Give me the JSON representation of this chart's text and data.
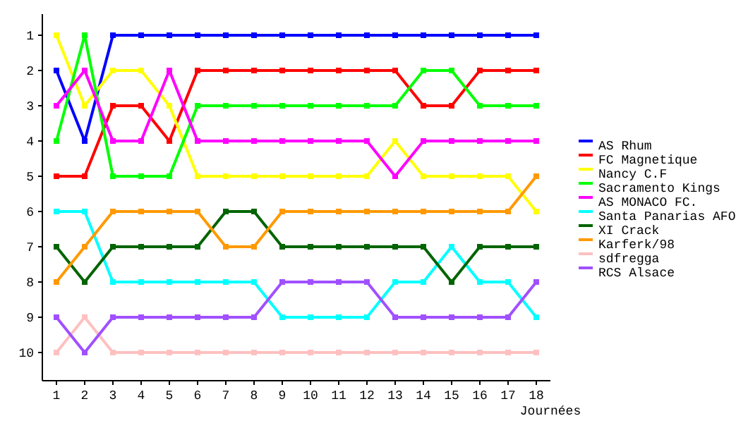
{
  "chart_data": {
    "type": "line",
    "xlabel": "Journées",
    "x": [
      1,
      2,
      3,
      4,
      5,
      6,
      7,
      8,
      9,
      10,
      11,
      12,
      13,
      14,
      15,
      16,
      17,
      18
    ],
    "xlim": [
      0.5,
      18.5
    ],
    "xticks": [
      1,
      2,
      3,
      4,
      5,
      6,
      7,
      8,
      9,
      10,
      11,
      12,
      13,
      14,
      15,
      16,
      17,
      18
    ],
    "ylim": [
      10.8,
      0.4
    ],
    "yticks": [
      1,
      2,
      3,
      4,
      5,
      6,
      7,
      8,
      9,
      10
    ],
    "grid": false,
    "legend": "right",
    "marker": "square",
    "line_style": "solid",
    "series": [
      {
        "name": "AS Rhum",
        "color": "#0000ff",
        "values": [
          2,
          4,
          1,
          1,
          1,
          1,
          1,
          1,
          1,
          1,
          1,
          1,
          1,
          1,
          1,
          1,
          1,
          1
        ]
      },
      {
        "name": "FC Magnetique",
        "color": "#ff0000",
        "values": [
          5,
          5,
          3,
          3,
          4,
          2,
          2,
          2,
          2,
          2,
          2,
          2,
          2,
          3,
          3,
          2,
          2,
          2
        ]
      },
      {
        "name": "Nancy C.F",
        "color": "#ffff00",
        "values": [
          1,
          3,
          2,
          2,
          3,
          5,
          5,
          5,
          5,
          5,
          5,
          5,
          4,
          5,
          5,
          5,
          5,
          6
        ]
      },
      {
        "name": "Sacramento Kings",
        "color": "#00ff00",
        "values": [
          4,
          1,
          5,
          5,
          5,
          3,
          3,
          3,
          3,
          3,
          3,
          3,
          3,
          2,
          2,
          3,
          3,
          3
        ]
      },
      {
        "name": "AS MONACO FC.",
        "color": "#ff00ff",
        "values": [
          3,
          2,
          4,
          4,
          2,
          4,
          4,
          4,
          4,
          4,
          4,
          4,
          5,
          4,
          4,
          4,
          4,
          4
        ]
      },
      {
        "name": "Santa Panarias AFO",
        "color": "#00ffff",
        "values": [
          6,
          6,
          8,
          8,
          8,
          8,
          8,
          8,
          9,
          9,
          9,
          9,
          8,
          8,
          7,
          8,
          8,
          9
        ]
      },
      {
        "name": "XI Crack",
        "color": "#006400",
        "values": [
          7,
          8,
          7,
          7,
          7,
          7,
          6,
          6,
          7,
          7,
          7,
          7,
          7,
          7,
          8,
          7,
          7,
          7
        ]
      },
      {
        "name": "Karferk/98",
        "color": "#ff9900",
        "values": [
          8,
          7,
          6,
          6,
          6,
          6,
          7,
          7,
          6,
          6,
          6,
          6,
          6,
          6,
          6,
          6,
          6,
          5
        ]
      },
      {
        "name": "sdfregga",
        "color": "#ffc0c0",
        "values": [
          10,
          9,
          10,
          10,
          10,
          10,
          10,
          10,
          10,
          10,
          10,
          10,
          10,
          10,
          10,
          10,
          10,
          10
        ]
      },
      {
        "name": "RCS Alsace",
        "color": "#a050ff",
        "values": [
          9,
          10,
          9,
          9,
          9,
          9,
          9,
          9,
          8,
          8,
          8,
          8,
          9,
          9,
          9,
          9,
          9,
          8
        ]
      }
    ]
  }
}
